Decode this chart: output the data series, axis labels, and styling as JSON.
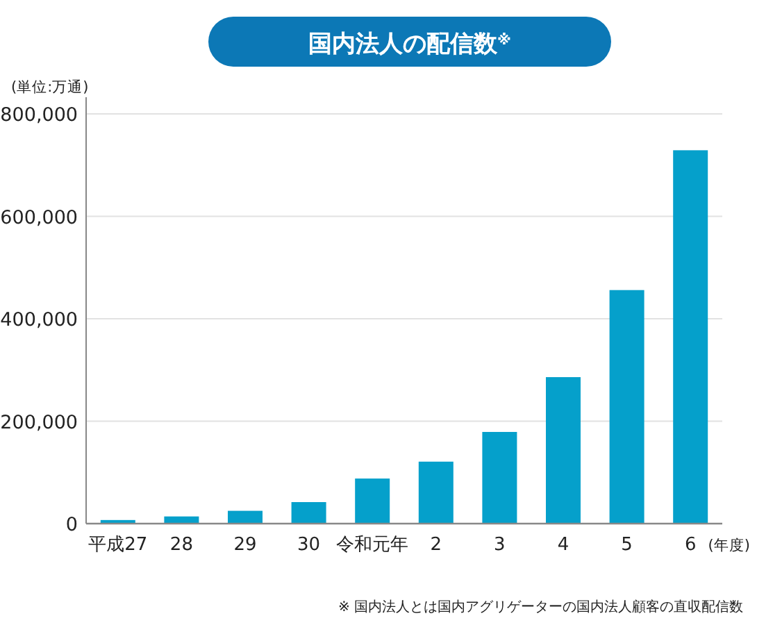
{
  "chart_data": {
    "type": "bar",
    "title": "国内法人の配信数$^{※}$",
    "ylabel": "(単位:万通)",
    "xlabel": "(年度)",
    "categories": [
      "平成27",
      "28",
      "29",
      "30",
      "令和元年",
      "2",
      "3",
      "4",
      "5",
      "6"
    ],
    "values": [
      7000,
      14000,
      25000,
      42000,
      88000,
      121000,
      179000,
      286000,
      456000,
      729000
    ],
    "color": "#05a0cb",
    "ylim": [
      0,
      800000
    ],
    "yticks": [
      {
        "value": 0,
        "label": "0"
      },
      {
        "value": 200000,
        "label": "200,000"
      },
      {
        "value": 400000,
        "label": "400,000"
      },
      {
        "value": 600000,
        "label": "600,000"
      },
      {
        "value": 800000,
        "label": "800,000"
      }
    ],
    "grid": "y",
    "annotations": [
      "※ 国内法人とは国内アグリゲーターの国内法人顧客の直収配信数"
    ]
  }
}
